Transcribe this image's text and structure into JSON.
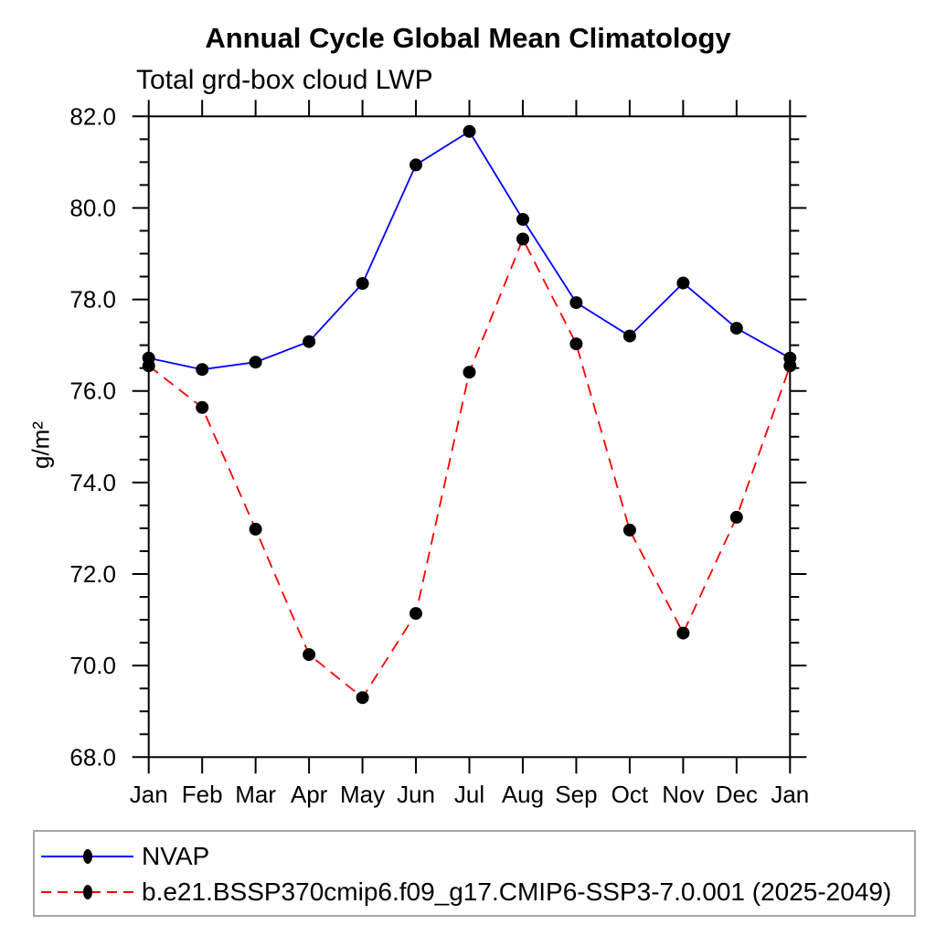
{
  "title": "Annual Cycle Global Mean Climatology",
  "subtitle": "Total grd-box cloud LWP",
  "chart_data": {
    "type": "line",
    "title": "Annual Cycle Global Mean Climatology",
    "subtitle": "Total grd-box cloud LWP",
    "xlabel": "",
    "ylabel": "g/m²",
    "categories": [
      "Jan",
      "Feb",
      "Mar",
      "Apr",
      "May",
      "Jun",
      "Jul",
      "Aug",
      "Sep",
      "Oct",
      "Nov",
      "Dec",
      "Jan"
    ],
    "ylim": [
      68.0,
      82.0
    ],
    "ytick_major_values": [
      68,
      70,
      72,
      74,
      76,
      78,
      80,
      82
    ],
    "ytick_major_labels": [
      "68.0",
      "70.0",
      "72.0",
      "74.0",
      "76.0",
      "78.0",
      "80.0",
      "82.0"
    ],
    "ytick_minor_step": 0.5,
    "grid": false,
    "frame": true,
    "tick_direction": "outward",
    "legend_position": "bottom-left-box",
    "axis_color": "#000000",
    "marker_color": "#000000",
    "series": [
      {
        "name": "NVAP",
        "color": "#0000ff",
        "style": "solid",
        "marker": "filled-circle",
        "values": [
          76.72,
          76.47,
          76.63,
          77.08,
          78.35,
          80.94,
          81.67,
          79.75,
          77.93,
          77.2,
          78.36,
          77.37,
          76.72
        ]
      },
      {
        "name": "b.e21.BSSP370cmip6.f09_g17.CMIP6-SSP3-7.0.001 (2025-2049)",
        "color": "#ff0000",
        "style": "dashed",
        "marker": "filled-circle",
        "values": [
          76.55,
          75.64,
          72.98,
          70.24,
          69.3,
          71.14,
          76.41,
          79.32,
          77.03,
          72.96,
          70.71,
          73.24,
          76.55
        ]
      }
    ]
  }
}
